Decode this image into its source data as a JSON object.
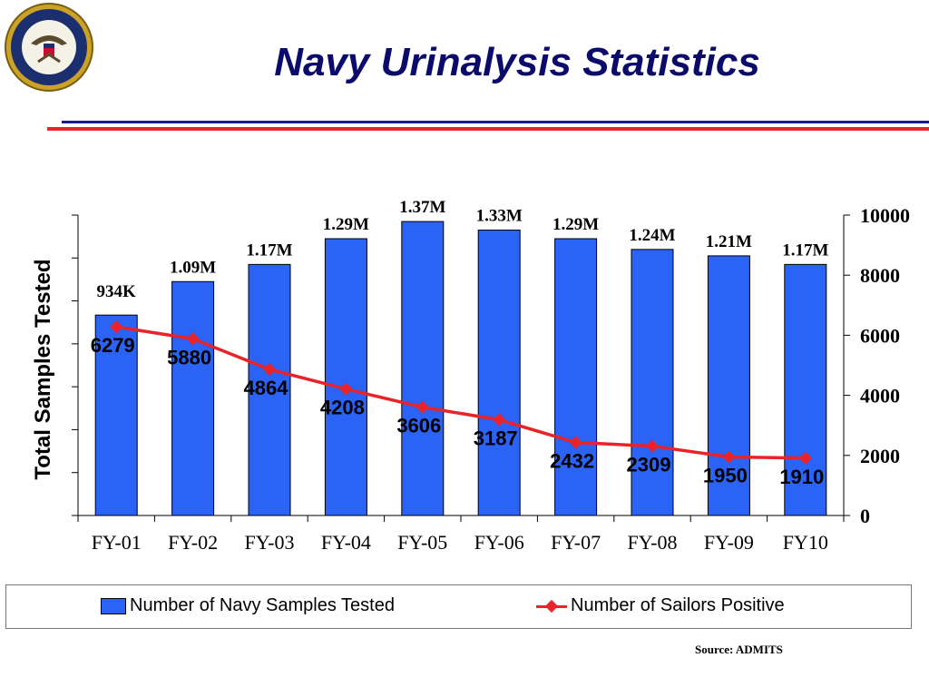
{
  "slide": {
    "title": "Navy Urinalysis Statistics",
    "source": "Source: ADMITS"
  },
  "colors": {
    "bar": "#2a63f5",
    "line": "#e8232a",
    "title": "#0b0b6b",
    "rule_blue": "#1a1a8a",
    "rule_red": "#e8232a"
  },
  "chart_data": {
    "type": "bar",
    "categories": [
      "FY-01",
      "FY-02",
      "FY-03",
      "FY-04",
      "FY-05",
      "FY-06",
      "FY-07",
      "FY-08",
      "FY-09",
      "FY10"
    ],
    "ylabel": "Total Samples Tested",
    "ylim": [
      0,
      1400000
    ],
    "y2lim": [
      0,
      10000
    ],
    "y2ticks": [
      0,
      2000,
      4000,
      6000,
      8000,
      10000
    ],
    "legend_position": "bottom",
    "grid": false,
    "series": [
      {
        "name": "Number of Navy Samples Tested",
        "type": "bar",
        "axis": "left",
        "values": [
          934000,
          1090000,
          1170000,
          1290000,
          1370000,
          1330000,
          1290000,
          1240000,
          1210000,
          1170000
        ],
        "labels": [
          "934K",
          "1.09M",
          "1.17M",
          "1.29M",
          "1.37M",
          "1.33M",
          "1.29M",
          "1.24M",
          "1.21M",
          "1.17M"
        ]
      },
      {
        "name": "Number of Sailors Positive",
        "type": "line",
        "axis": "right",
        "values": [
          6279,
          5880,
          4864,
          4208,
          3606,
          3187,
          2432,
          2309,
          1950,
          1910
        ],
        "labels": [
          "6279",
          "5880",
          "4864",
          "4208",
          "3606",
          "3187",
          "2432",
          "2309",
          "1950",
          "1910"
        ]
      }
    ]
  }
}
